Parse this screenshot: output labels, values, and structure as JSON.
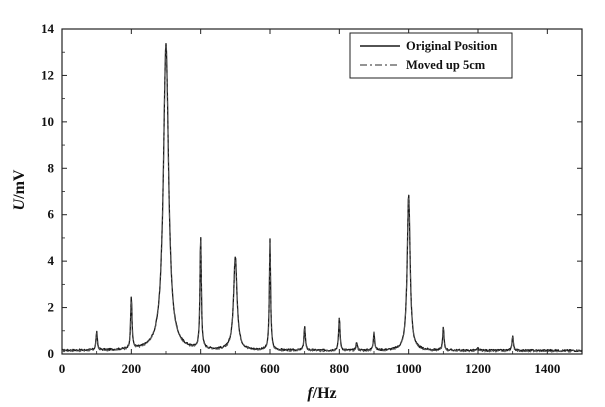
{
  "chart_data": {
    "type": "line",
    "xlabel": {
      "var": "f",
      "unit": "/Hz"
    },
    "ylabel": {
      "var": "U",
      "unit": "/mV"
    },
    "xlim": [
      0,
      1500
    ],
    "ylim": [
      0,
      14
    ],
    "xticks": [
      0,
      200,
      400,
      600,
      800,
      1000,
      1200,
      1400
    ],
    "yticks": [
      0,
      2,
      4,
      6,
      8,
      10,
      12,
      14
    ],
    "legend_position": "top-right",
    "grid": false,
    "colors": {
      "series_1": "#1a1a1a",
      "series_2": "#555555"
    },
    "series": [
      {
        "name": "Original Position",
        "style": "solid",
        "baseline": 0.15,
        "peaks": [
          {
            "f": 100,
            "u": 0.95
          },
          {
            "f": 200,
            "u": 2.45
          },
          {
            "f": 300,
            "u": 13.4
          },
          {
            "f": 400,
            "u": 5.15
          },
          {
            "f": 500,
            "u": 4.15
          },
          {
            "f": 600,
            "u": 4.9
          },
          {
            "f": 700,
            "u": 1.2
          },
          {
            "f": 800,
            "u": 1.6
          },
          {
            "f": 850,
            "u": 0.5
          },
          {
            "f": 900,
            "u": 0.95
          },
          {
            "f": 1000,
            "u": 6.9
          },
          {
            "f": 1100,
            "u": 1.15
          },
          {
            "f": 1200,
            "u": 0.25
          },
          {
            "f": 1300,
            "u": 0.8
          }
        ]
      },
      {
        "name": "Moved up 5cm",
        "style": "dashdot",
        "baseline": 0.12,
        "peaks": [
          {
            "f": 100,
            "u": 0.9
          },
          {
            "f": 200,
            "u": 2.3
          },
          {
            "f": 300,
            "u": 13.2
          },
          {
            "f": 400,
            "u": 5.0
          },
          {
            "f": 500,
            "u": 4.1
          },
          {
            "f": 600,
            "u": 4.8
          },
          {
            "f": 700,
            "u": 1.15
          },
          {
            "f": 800,
            "u": 1.55
          },
          {
            "f": 850,
            "u": 0.45
          },
          {
            "f": 900,
            "u": 0.9
          },
          {
            "f": 1000,
            "u": 6.85
          },
          {
            "f": 1100,
            "u": 1.1
          },
          {
            "f": 1200,
            "u": 0.22
          },
          {
            "f": 1300,
            "u": 0.75
          }
        ]
      }
    ]
  }
}
